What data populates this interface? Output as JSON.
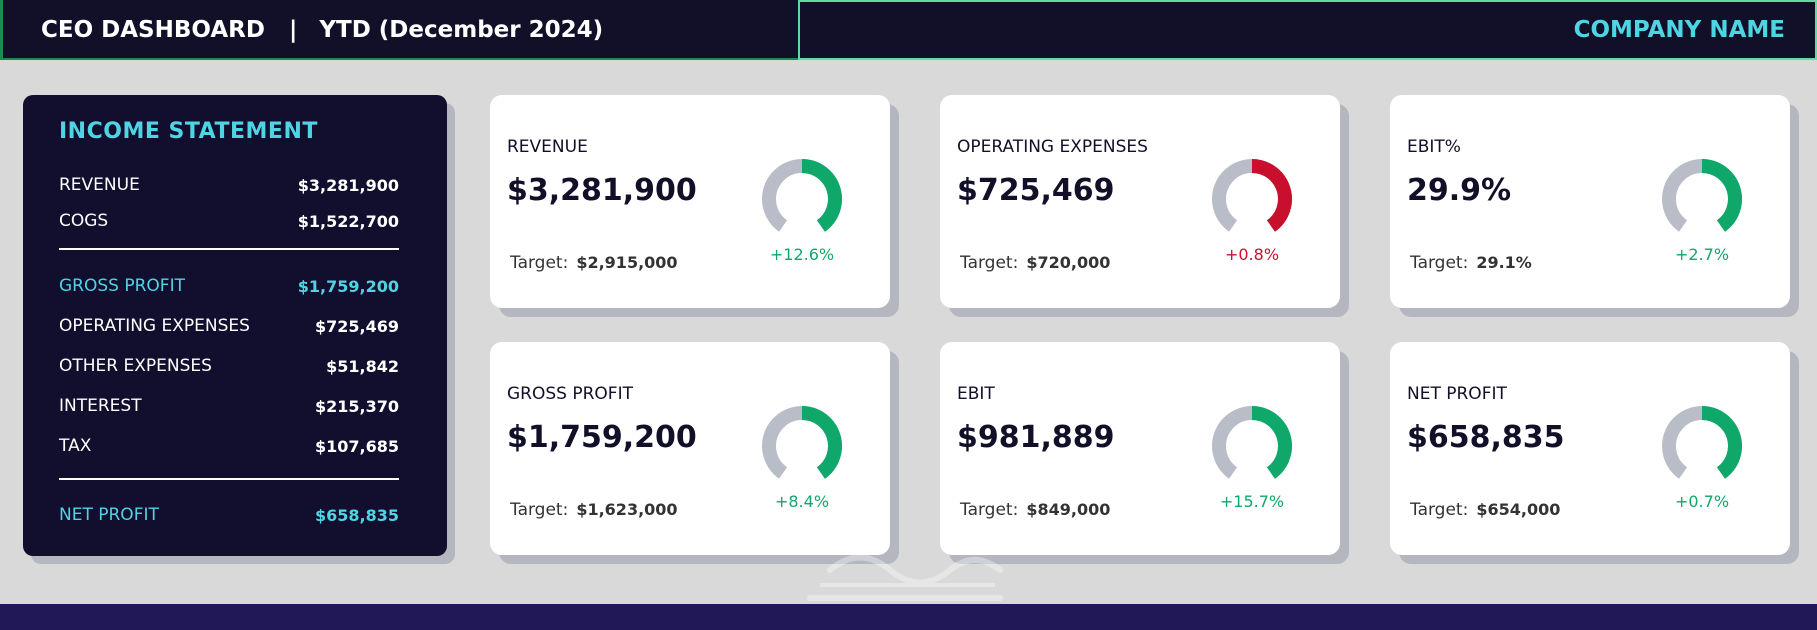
{
  "header": {
    "title": "CEO DASHBOARD",
    "separator": "|",
    "period": "YTD (December 2024)",
    "company": "COMPANY NAME"
  },
  "income_statement": {
    "title": "INCOME STATEMENT",
    "revenue": {
      "label": "REVENUE",
      "value": "$3,281,900"
    },
    "cogs": {
      "label": "COGS",
      "value": "$1,522,700"
    },
    "gross_profit": {
      "label": "GROSS PROFIT",
      "value": "$1,759,200"
    },
    "operating_expenses": {
      "label": "OPERATING EXPENSES",
      "value": "$725,469"
    },
    "other_expenses": {
      "label": "OTHER EXPENSES",
      "value": "$51,842"
    },
    "interest": {
      "label": "INTEREST",
      "value": "$215,370"
    },
    "tax": {
      "label": "TAX",
      "value": "$107,685"
    },
    "net_profit": {
      "label": "NET PROFIT",
      "value": "$658,835"
    }
  },
  "colors": {
    "positive": "#10a86a",
    "negative": "#c8102e",
    "gauge_track": "#b9bdc7",
    "accent": "#4fd4e4"
  },
  "kpis": [
    {
      "title": "REVENUE",
      "value": "$3,281,900",
      "target_label": "Target:",
      "target": "$2,915,000",
      "change": "+12.6%",
      "status": "positive",
      "gauge_fraction": 0.5
    },
    {
      "title": "OPERATING EXPENSES",
      "value": "$725,469",
      "target_label": "Target:",
      "target": "$720,000",
      "change": "+0.8%",
      "status": "negative",
      "gauge_fraction": 0.5
    },
    {
      "title": "EBIT%",
      "value": "29.9%",
      "target_label": "Target:",
      "target": "29.1%",
      "change": "+2.7%",
      "status": "positive",
      "gauge_fraction": 0.5
    },
    {
      "title": "GROSS PROFIT",
      "value": "$1,759,200",
      "target_label": "Target:",
      "target": "$1,623,000",
      "change": "+8.4%",
      "status": "positive",
      "gauge_fraction": 0.5
    },
    {
      "title": "EBIT",
      "value": "$981,889",
      "target_label": "Target:",
      "target": "$849,000",
      "change": "+15.7%",
      "status": "positive",
      "gauge_fraction": 0.55
    },
    {
      "title": "NET PROFIT",
      "value": "$658,835",
      "target_label": "Target:",
      "target": "$654,000",
      "change": "+0.7%",
      "status": "positive",
      "gauge_fraction": 0.5
    }
  ]
}
